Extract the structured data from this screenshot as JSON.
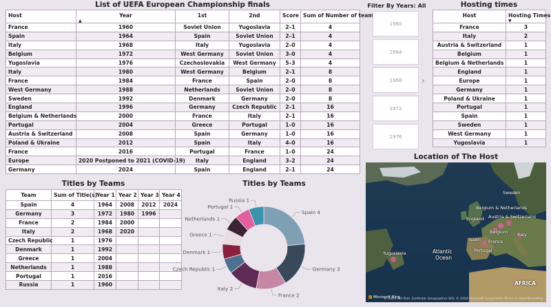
{
  "finals": {
    "title": "List of UEFA European Championship finals",
    "columns": [
      "Host",
      "Year",
      "1st",
      "2nd",
      "Score",
      "Sum of Number of teams"
    ],
    "rows": [
      [
        "France",
        "1960",
        "Soviet Union",
        "Yugoslavia",
        "2–1",
        "4"
      ],
      [
        "Spain",
        "1964",
        "Spain",
        "Soviet Union",
        "2–1",
        "4"
      ],
      [
        "Italy",
        "1968",
        "Italy",
        "Yugoslavia",
        "2–0",
        "4"
      ],
      [
        "Belgium",
        "1972",
        "West Germany",
        "Soviet Union",
        "3–0",
        "4"
      ],
      [
        "Yugoslavia",
        "1976",
        "Czechoslovakia",
        "West Germany",
        "5–3",
        "4"
      ],
      [
        "Italy",
        "1980",
        "West Germany",
        "Belgium",
        "2–1",
        "8"
      ],
      [
        "France",
        "1984",
        "France",
        "Spain",
        "2–0",
        "8"
      ],
      [
        "West Germany",
        "1988",
        "Netherlands",
        "Soviet Union",
        "2–0",
        "8"
      ],
      [
        "Sweden",
        "1992",
        "Denmark",
        "Germany",
        "2–0",
        "8"
      ],
      [
        "England",
        "1996",
        "Germany",
        "Czech Republic",
        "2–1",
        "16"
      ],
      [
        "Belgium & Netherlands",
        "2000",
        "France",
        "Italy",
        "2–1",
        "16"
      ],
      [
        "Portugal",
        "2004",
        "Greece",
        "Portugal",
        "1–0",
        "16"
      ],
      [
        "Austria & Switzerland",
        "2008",
        "Spain",
        "Germany",
        "1–0",
        "16"
      ],
      [
        "Poland & Ukraine",
        "2012",
        "Spain",
        "Italy",
        "4–0",
        "16"
      ],
      [
        "France",
        "2016",
        "Portugal",
        "France",
        "1–0",
        "24"
      ],
      [
        "Europe",
        "2020 Postponed to 2021 (COVID-19)",
        "Italy",
        "England",
        "3–2",
        "24"
      ],
      [
        "Germany",
        "2024",
        "Spain",
        "England",
        "2–1",
        "24"
      ]
    ]
  },
  "slicer": {
    "title": "Filter By Years: All",
    "options": [
      "1960",
      "1964",
      "1968",
      "1972",
      "1976"
    ],
    "next_icon": "chevron-right-icon"
  },
  "hosting": {
    "title": "Hosting times",
    "columns": [
      "Host",
      "Hosting Times"
    ],
    "rows": [
      [
        "France",
        "3"
      ],
      [
        "Italy",
        "2"
      ],
      [
        "Austria & Switzerland",
        "1"
      ],
      [
        "Belgium",
        "1"
      ],
      [
        "Belgium & Netherlands",
        "1"
      ],
      [
        "England",
        "1"
      ],
      [
        "Europe",
        "1"
      ],
      [
        "Germany",
        "1"
      ],
      [
        "Poland & Ukraine",
        "1"
      ],
      [
        "Portugal",
        "1"
      ],
      [
        "Spain",
        "1"
      ],
      [
        "Sweden",
        "1"
      ],
      [
        "West Germany",
        "1"
      ],
      [
        "Yugoslavia",
        "1"
      ]
    ]
  },
  "titles_table": {
    "title": "Titles by Teams",
    "columns": [
      "Team",
      "Sum of Title(s)",
      "Year 1",
      "Year 2",
      "Year 3",
      "Year 4"
    ],
    "rows": [
      [
        "Spain",
        "4",
        "1964",
        "2008",
        "2012",
        "2024"
      ],
      [
        "Germany",
        "3",
        "1972",
        "1980",
        "1996",
        ""
      ],
      [
        "France",
        "2",
        "1984",
        "2000",
        "",
        ""
      ],
      [
        "Italy",
        "2",
        "1968",
        "2020",
        "",
        ""
      ],
      [
        "Czech Republic",
        "1",
        "1976",
        "",
        "",
        ""
      ],
      [
        "Denmark",
        "1",
        "1992",
        "",
        "",
        ""
      ],
      [
        "Greece",
        "1",
        "2004",
        "",
        "",
        ""
      ],
      [
        "Netherlands",
        "1",
        "1988",
        "",
        "",
        ""
      ],
      [
        "Portugal",
        "1",
        "2016",
        "",
        "",
        ""
      ],
      [
        "Russia",
        "1",
        "1960",
        "",
        "",
        ""
      ]
    ]
  },
  "map": {
    "title": "Location of The Host",
    "labels": [
      "Sweden",
      "Belgium & Netherlands",
      "England",
      "Austria & Switzerland",
      "Belgium",
      "Italy",
      "Spain",
      "France",
      "Portugal",
      "Yugoslavia",
      "Atlantic",
      "Ocean",
      "AFRICA"
    ],
    "brand": "Microsoft Bing",
    "attribution": "© 2024 TomTom, Earthstar Geographics SIO, © 2024 Microsoft Corporation  Terms  © OpenStreetMap"
  },
  "chart_data": {
    "type": "pie",
    "title": "Titles by Teams",
    "donut": true,
    "slices": [
      {
        "label": "Spain",
        "value": 4,
        "color": "#7e9fb4"
      },
      {
        "label": "Germany",
        "value": 3,
        "color": "#37495a"
      },
      {
        "label": "France",
        "value": 2,
        "color": "#c587a4"
      },
      {
        "label": "Italy",
        "value": 2,
        "color": "#5e2a56"
      },
      {
        "label": "Czech Republic",
        "value": 1,
        "color": "#4d7091"
      },
      {
        "label": "Denmark",
        "value": 1,
        "color": "#8a1f3f"
      },
      {
        "label": "Greece",
        "value": 1,
        "color": "#e9dce3"
      },
      {
        "label": "Netherlands",
        "value": 1,
        "color": "#3c2334"
      },
      {
        "label": "Portugal",
        "value": 1,
        "color": "#e45fa0"
      },
      {
        "label": "Russia",
        "value": 1,
        "color": "#3a93ad"
      }
    ]
  }
}
